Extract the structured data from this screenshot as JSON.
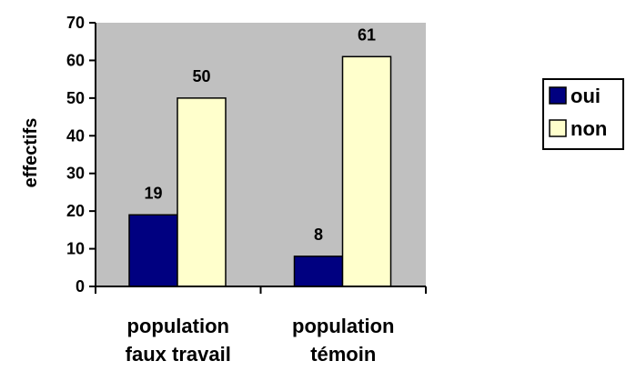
{
  "chart_data": {
    "type": "bar",
    "categories": [
      [
        "population",
        "faux travail"
      ],
      [
        "population",
        "témoin"
      ]
    ],
    "series": [
      {
        "name": "oui",
        "values": [
          19,
          8
        ],
        "color": "#000080"
      },
      {
        "name": "non",
        "values": [
          50,
          61
        ],
        "color": "#FFFFCC"
      }
    ],
    "ylabel": "effectifs",
    "ylim": [
      0,
      70
    ],
    "yticks": [
      0,
      10,
      20,
      30,
      40,
      50,
      60,
      70
    ],
    "plot_background": "#C0C0C0",
    "grid": false,
    "legend_position": "right"
  }
}
